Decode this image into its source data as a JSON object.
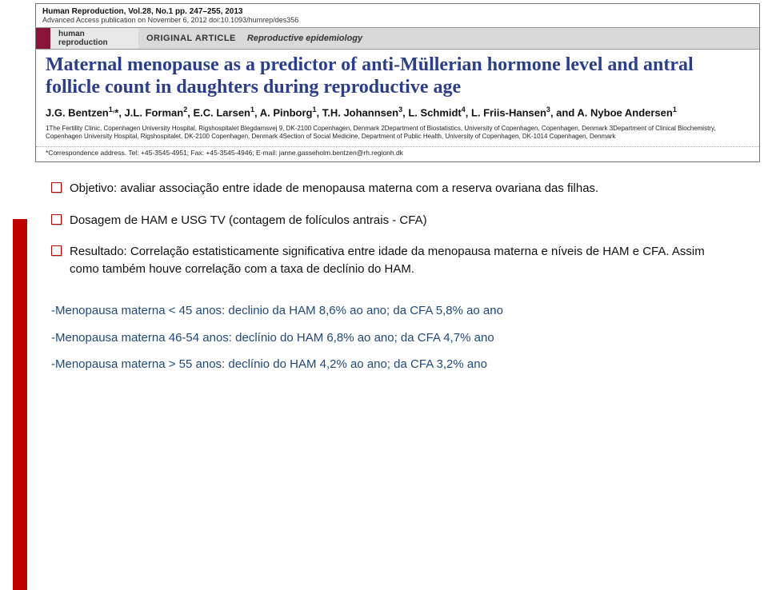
{
  "header": {
    "top_line": "Human Reproduction, Vol.28, No.1 pp. 247–255, 2013",
    "pub_line": "Advanced Access publication on November 6, 2012   doi:10.1093/humrep/des356",
    "journal_word1": "human",
    "journal_word2": "reproduction",
    "banner_orig": "ORIGINAL ARTICLE",
    "banner_topic": "Reproductive epidemiology",
    "title": "Maternal menopause as a predictor of anti-Müllerian hormone level and antral follicle count in daughters during reproductive age",
    "authors_html": "J.G. Bentzen<sup>1,</sup>*, J.L. Forman<sup>2</sup>, E.C. Larsen<sup>1</sup>, A. Pinborg<sup>1</sup>, T.H. Johannsen<sup>3</sup>, L. Schmidt<sup>4</sup>, L. Friis-Hansen<sup>3</sup>, and A. Nyboe Andersen<sup>1</sup>",
    "affil": "1The Fertility Clinic, Copenhagen University Hospital, Rigshospitalet Blegdamsvej 9, DK-2100 Copenhagen, Denmark 2Department of Biostatistics, University of Copenhagen, Copenhagen, Denmark 3Department of Clinical Biochemistry, Copenhagen University Hospital, Rigshospitalet, DK-2100 Copenhagen, Denmark 4Section of Social Medicine, Department of Public Health, University of Copenhagen, DK-1014 Copenhagen, Denmark",
    "corr": "*Correspondence address. Tel: +45-3545-4951; Fax: +45-3545-4946; E-mail: janne.gasseholm.bentzen@rh.regionh.dk"
  },
  "bullets": [
    "Objetivo: avaliar associação entre idade de menopausa materna com a reserva ovariana das filhas.",
    "Dosagem de HAM e USG TV (contagem de folículos antrais - CFA)",
    "Resultado: Correlação estatisticamente significativa entre idade da menopausa materna e níveis de HAM e CFA. Assim como também houve correlação com a taxa de declínio do HAM."
  ],
  "results": [
    "-Menopausa materna < 45 anos: declinio da HAM 8,6% ao ano; da CFA 5,8% ao ano",
    "-Menopausa materna 46-54 anos: declínio do HAM 6,8% ao ano; da CFA 4,7% ano",
    "-Menopausa materna > 55 anos: declínio do HAM 4,2% ao ano; da CFA 3,2% ano"
  ],
  "colors": {
    "accent_red": "#c00000",
    "title_blue": "#2a3e8a",
    "result_blue": "#20497a",
    "banner_maroon": "#8a1538",
    "banner_light": "#e8e8e8",
    "banner_mid": "#d9d9d9"
  }
}
